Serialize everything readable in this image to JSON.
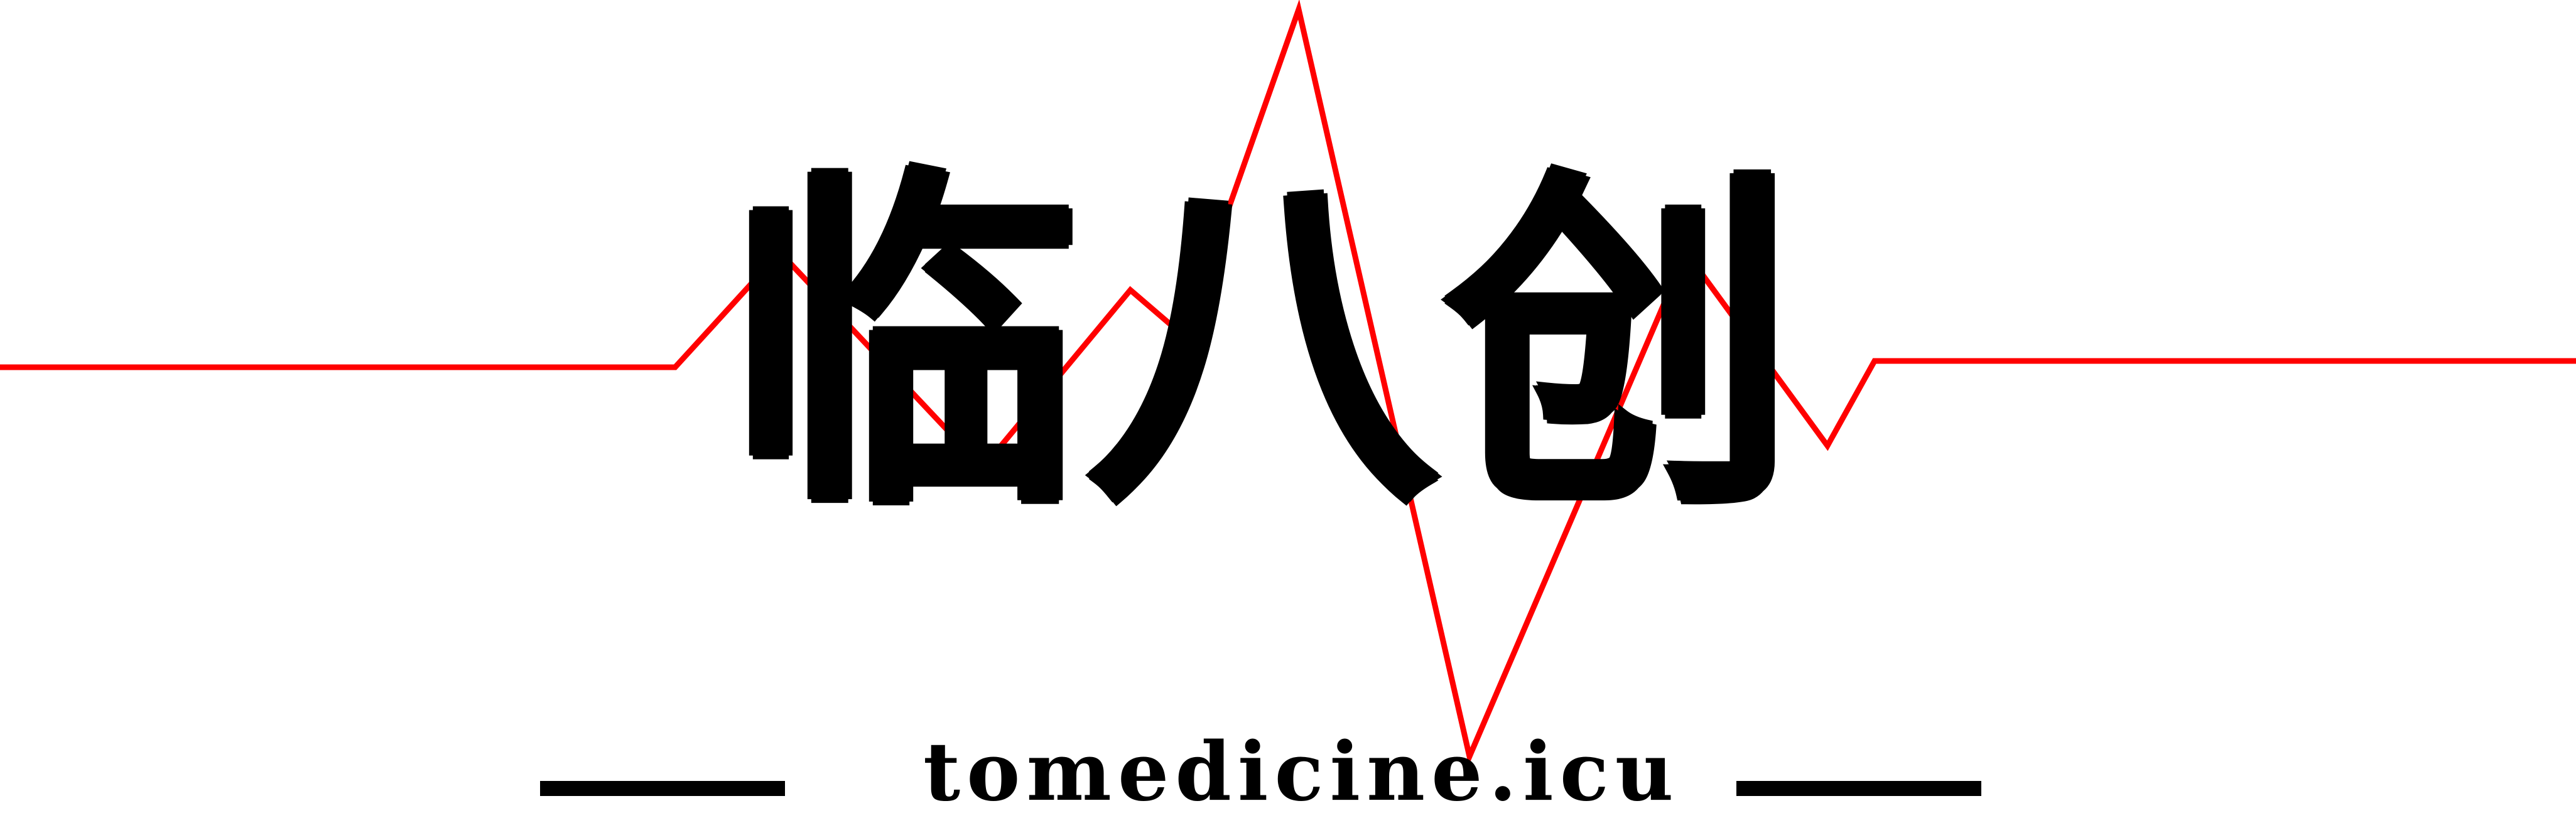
{
  "banner": {
    "title_chars": [
      "临",
      "八",
      "创"
    ],
    "url": "tomedicine.icu",
    "colors": {
      "background": "#ffffff",
      "pulse_line": "#ff0000",
      "text": "#000000",
      "rules": "#000000"
    }
  }
}
